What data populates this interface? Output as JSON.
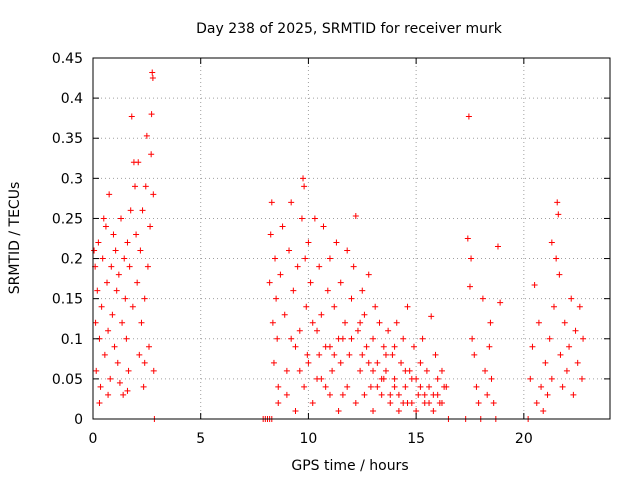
{
  "chart_data": {
    "type": "scatter",
    "title": "Day 238 of 2025, SRMTID for receiver murk",
    "xlabel": "GPS time / hours",
    "ylabel": "SRMTID / TECUs",
    "xlim": [
      0,
      24
    ],
    "ylim": [
      0,
      0.45
    ],
    "xticks": [
      0,
      5,
      10,
      15,
      20
    ],
    "yticks": [
      0,
      0.05,
      0.1,
      0.15,
      0.2,
      0.25,
      0.3,
      0.35,
      0.4,
      0.45
    ],
    "xtick_labels": [
      "0",
      "5",
      "10",
      "15",
      "20"
    ],
    "ytick_labels": [
      "0",
      "0.05",
      "0.1",
      "0.15",
      "0.2",
      "0.25",
      "0.3",
      "0.35",
      "0.4",
      "0.45"
    ],
    "grid": true,
    "marker": "+",
    "color": "#ff0000",
    "series": [
      {
        "name": "SRMTID",
        "points": [
          [
            0.05,
            0.21
          ],
          [
            0.1,
            0.19
          ],
          [
            0.12,
            0.12
          ],
          [
            0.15,
            0.06
          ],
          [
            0.2,
            0.16
          ],
          [
            0.25,
            0.22
          ],
          [
            0.3,
            0.1
          ],
          [
            0.35,
            0.04
          ],
          [
            0.4,
            0.14
          ],
          [
            0.45,
            0.2
          ],
          [
            0.5,
            0.25
          ],
          [
            0.55,
            0.08
          ],
          [
            0.6,
            0.24
          ],
          [
            0.65,
            0.17
          ],
          [
            0.7,
            0.11
          ],
          [
            0.75,
            0.28
          ],
          [
            0.8,
            0.05
          ],
          [
            0.85,
            0.19
          ],
          [
            0.9,
            0.13
          ],
          [
            0.95,
            0.23
          ],
          [
            1.0,
            0.09
          ],
          [
            1.05,
            0.21
          ],
          [
            1.1,
            0.16
          ],
          [
            1.15,
            0.07
          ],
          [
            1.2,
            0.18
          ],
          [
            1.3,
            0.25
          ],
          [
            1.35,
            0.12
          ],
          [
            1.4,
            0.03
          ],
          [
            1.45,
            0.2
          ],
          [
            1.5,
            0.15
          ],
          [
            1.55,
            0.1
          ],
          [
            1.6,
            0.22
          ],
          [
            1.65,
            0.06
          ],
          [
            1.7,
            0.19
          ],
          [
            1.75,
            0.26
          ],
          [
            1.8,
            0.377
          ],
          [
            1.85,
            0.14
          ],
          [
            1.9,
            0.32
          ],
          [
            1.95,
            0.29
          ],
          [
            2.0,
            0.23
          ],
          [
            2.05,
            0.17
          ],
          [
            2.1,
            0.32
          ],
          [
            2.15,
            0.08
          ],
          [
            2.2,
            0.21
          ],
          [
            2.25,
            0.12
          ],
          [
            2.3,
            0.26
          ],
          [
            2.35,
            0.04
          ],
          [
            2.4,
            0.15
          ],
          [
            2.45,
            0.29
          ],
          [
            2.5,
            0.353
          ],
          [
            2.55,
            0.19
          ],
          [
            2.6,
            0.09
          ],
          [
            2.65,
            0.24
          ],
          [
            2.7,
            0.33
          ],
          [
            2.72,
            0.38
          ],
          [
            2.75,
            0.432
          ],
          [
            2.78,
            0.425
          ],
          [
            2.8,
            0.28
          ],
          [
            2.82,
            0.06
          ],
          [
            2.85,
            0.0
          ],
          [
            0.3,
            0.02
          ],
          [
            1.25,
            0.045
          ],
          [
            1.6,
            0.035
          ],
          [
            2.4,
            0.07
          ],
          [
            0.7,
            0.03
          ],
          [
            7.9,
            0.0
          ],
          [
            8.0,
            0.0
          ],
          [
            8.1,
            0.0
          ],
          [
            8.2,
            0.0
          ],
          [
            8.3,
            0.0
          ],
          [
            8.2,
            0.17
          ],
          [
            8.25,
            0.23
          ],
          [
            8.3,
            0.27
          ],
          [
            8.35,
            0.12
          ],
          [
            8.4,
            0.07
          ],
          [
            8.45,
            0.2
          ],
          [
            8.5,
            0.15
          ],
          [
            8.55,
            0.1
          ],
          [
            8.6,
            0.04
          ],
          [
            8.7,
            0.18
          ],
          [
            8.8,
            0.24
          ],
          [
            8.9,
            0.13
          ],
          [
            9.0,
            0.06
          ],
          [
            9.1,
            0.21
          ],
          [
            9.2,
            0.27
          ],
          [
            9.3,
            0.16
          ],
          [
            9.4,
            0.09
          ],
          [
            9.5,
            0.19
          ],
          [
            9.6,
            0.11
          ],
          [
            9.7,
            0.25
          ],
          [
            9.75,
            0.3
          ],
          [
            9.8,
            0.29
          ],
          [
            9.85,
            0.2
          ],
          [
            9.9,
            0.14
          ],
          [
            9.95,
            0.08
          ],
          [
            10.0,
            0.22
          ],
          [
            10.1,
            0.17
          ],
          [
            10.2,
            0.12
          ],
          [
            10.3,
            0.25
          ],
          [
            10.4,
            0.05
          ],
          [
            10.5,
            0.19
          ],
          [
            10.6,
            0.13
          ],
          [
            10.7,
            0.24
          ],
          [
            10.8,
            0.09
          ],
          [
            10.9,
            0.16
          ],
          [
            11.0,
            0.2
          ],
          [
            11.1,
            0.06
          ],
          [
            11.2,
            0.14
          ],
          [
            11.3,
            0.22
          ],
          [
            11.4,
            0.1
          ],
          [
            11.5,
            0.17
          ],
          [
            11.6,
            0.03
          ],
          [
            11.7,
            0.12
          ],
          [
            11.8,
            0.21
          ],
          [
            11.9,
            0.08
          ],
          [
            12.0,
            0.15
          ],
          [
            12.1,
            0.19
          ],
          [
            12.2,
            0.253
          ],
          [
            12.3,
            0.11
          ],
          [
            12.4,
            0.06
          ],
          [
            12.5,
            0.16
          ],
          [
            12.6,
            0.13
          ],
          [
            12.7,
            0.09
          ],
          [
            12.8,
            0.18
          ],
          [
            12.9,
            0.04
          ],
          [
            13.0,
            0.1
          ],
          [
            13.1,
            0.14
          ],
          [
            13.2,
            0.07
          ],
          [
            13.3,
            0.12
          ],
          [
            13.4,
            0.03
          ],
          [
            13.5,
            0.09
          ],
          [
            13.6,
            0.06
          ],
          [
            13.7,
            0.11
          ],
          [
            13.8,
            0.02
          ],
          [
            13.9,
            0.08
          ],
          [
            14.0,
            0.05
          ],
          [
            14.1,
            0.12
          ],
          [
            14.2,
            0.03
          ],
          [
            14.3,
            0.07
          ],
          [
            14.4,
            0.1
          ],
          [
            14.5,
            0.04
          ],
          [
            14.6,
            0.14
          ],
          [
            14.7,
            0.06
          ],
          [
            14.8,
            0.02
          ],
          [
            14.9,
            0.09
          ],
          [
            15.0,
            0.05
          ],
          [
            15.1,
            0.03
          ],
          [
            15.2,
            0.07
          ],
          [
            15.3,
            0.1
          ],
          [
            15.4,
            0.02
          ],
          [
            15.5,
            0.06
          ],
          [
            15.6,
            0.04
          ],
          [
            15.7,
            0.128
          ],
          [
            15.8,
            0.03
          ],
          [
            15.9,
            0.08
          ],
          [
            16.0,
            0.05
          ],
          [
            16.1,
            0.02
          ],
          [
            16.2,
            0.06
          ],
          [
            16.3,
            0.04
          ],
          [
            16.5,
            0.0
          ],
          [
            8.6,
            0.02
          ],
          [
            9.0,
            0.03
          ],
          [
            9.4,
            0.01
          ],
          [
            9.8,
            0.04
          ],
          [
            10.2,
            0.02
          ],
          [
            10.6,
            0.05
          ],
          [
            11.0,
            0.03
          ],
          [
            11.4,
            0.01
          ],
          [
            11.8,
            0.04
          ],
          [
            12.2,
            0.02
          ],
          [
            12.6,
            0.03
          ],
          [
            13.0,
            0.01
          ],
          [
            13.4,
            0.05
          ],
          [
            13.8,
            0.03
          ],
          [
            14.2,
            0.01
          ],
          [
            14.6,
            0.02
          ],
          [
            15.0,
            0.01
          ],
          [
            15.4,
            0.03
          ],
          [
            15.8,
            0.01
          ],
          [
            16.2,
            0.02
          ],
          [
            10.0,
            0.07
          ],
          [
            10.5,
            0.08
          ],
          [
            11.0,
            0.09
          ],
          [
            11.5,
            0.07
          ],
          [
            12.0,
            0.1
          ],
          [
            12.5,
            0.08
          ],
          [
            13.0,
            0.06
          ],
          [
            13.5,
            0.05
          ],
          [
            14.0,
            0.04
          ],
          [
            14.5,
            0.06
          ],
          [
            9.2,
            0.1
          ],
          [
            9.6,
            0.06
          ],
          [
            10.4,
            0.11
          ],
          [
            10.8,
            0.04
          ],
          [
            11.2,
            0.08
          ],
          [
            11.6,
            0.1
          ],
          [
            12.4,
            0.12
          ],
          [
            12.8,
            0.07
          ],
          [
            13.2,
            0.04
          ],
          [
            13.6,
            0.08
          ],
          [
            14.0,
            0.09
          ],
          [
            14.4,
            0.02
          ],
          [
            14.8,
            0.05
          ],
          [
            15.2,
            0.04
          ],
          [
            15.6,
            0.02
          ],
          [
            16.0,
            0.03
          ],
          [
            16.4,
            0.04
          ],
          [
            17.3,
            0.0
          ],
          [
            17.4,
            0.225
          ],
          [
            17.45,
            0.377
          ],
          [
            17.5,
            0.165
          ],
          [
            17.6,
            0.1
          ],
          [
            17.7,
            0.08
          ],
          [
            17.8,
            0.04
          ],
          [
            17.9,
            0.02
          ],
          [
            18.0,
            0.0
          ],
          [
            18.1,
            0.15
          ],
          [
            18.2,
            0.06
          ],
          [
            18.3,
            0.03
          ],
          [
            18.4,
            0.09
          ],
          [
            18.5,
            0.05
          ],
          [
            18.6,
            0.02
          ],
          [
            18.7,
            0.0
          ],
          [
            18.8,
            0.215
          ],
          [
            18.9,
            0.145
          ],
          [
            17.55,
            0.2
          ],
          [
            18.45,
            0.12
          ],
          [
            20.2,
            0.0
          ],
          [
            20.3,
            0.05
          ],
          [
            20.4,
            0.09
          ],
          [
            20.5,
            0.167
          ],
          [
            20.6,
            0.02
          ],
          [
            20.7,
            0.12
          ],
          [
            20.8,
            0.04
          ],
          [
            20.9,
            0.01
          ],
          [
            21.0,
            0.07
          ],
          [
            21.1,
            0.03
          ],
          [
            21.2,
            0.1
          ],
          [
            21.3,
            0.05
          ],
          [
            21.4,
            0.14
          ],
          [
            21.5,
            0.2
          ],
          [
            21.55,
            0.27
          ],
          [
            21.6,
            0.255
          ],
          [
            21.65,
            0.18
          ],
          [
            21.7,
            0.08
          ],
          [
            21.8,
            0.04
          ],
          [
            21.9,
            0.12
          ],
          [
            22.0,
            0.06
          ],
          [
            22.1,
            0.09
          ],
          [
            22.2,
            0.15
          ],
          [
            22.3,
            0.03
          ],
          [
            22.4,
            0.11
          ],
          [
            22.5,
            0.07
          ],
          [
            22.6,
            0.14
          ],
          [
            22.7,
            0.05
          ],
          [
            22.75,
            0.1
          ],
          [
            21.3,
            0.22
          ]
        ]
      }
    ]
  }
}
